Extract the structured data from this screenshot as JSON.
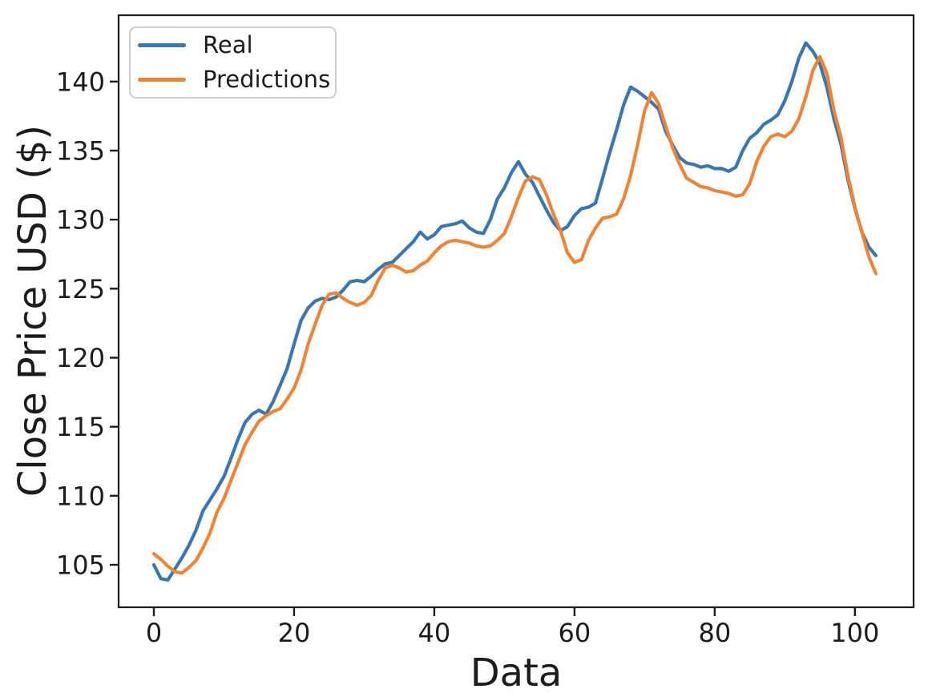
{
  "chart_data": {
    "type": "line",
    "title": "",
    "xlabel": "Data",
    "ylabel": "Close Price USD ($)",
    "x_ticks": [
      0,
      20,
      40,
      60,
      80,
      100
    ],
    "y_ticks": [
      105,
      110,
      115,
      120,
      125,
      130,
      135,
      140
    ],
    "xlim": [
      -5.15,
      108.15
    ],
    "ylim": [
      101.9,
      144.8
    ],
    "grid": false,
    "legend_position": "upper left",
    "x_start": 0,
    "x_step": 1,
    "n_points": 104,
    "series": [
      {
        "name": "Real",
        "color": "#3a76b0",
        "values": [
          105.0,
          104.0,
          103.9,
          104.7,
          105.5,
          106.4,
          107.5,
          108.9,
          109.7,
          110.5,
          111.4,
          112.7,
          114.1,
          115.3,
          115.9,
          116.2,
          115.9,
          116.8,
          118.0,
          119.2,
          121.0,
          122.7,
          123.6,
          124.1,
          124.3,
          124.2,
          124.4,
          124.9,
          125.5,
          125.6,
          125.5,
          125.9,
          126.4,
          126.8,
          126.9,
          127.4,
          127.9,
          128.4,
          129.1,
          128.6,
          128.9,
          129.5,
          129.6,
          129.7,
          129.9,
          129.4,
          129.1,
          129.0,
          130.0,
          131.5,
          132.3,
          133.4,
          134.2,
          133.3,
          132.7,
          131.7,
          130.7,
          129.8,
          129.2,
          129.5,
          130.3,
          130.8,
          130.9,
          131.2,
          133.0,
          134.8,
          136.5,
          138.3,
          139.6,
          139.3,
          138.9,
          138.5,
          138.0,
          136.4,
          135.4,
          134.5,
          134.1,
          134.0,
          133.8,
          133.9,
          133.7,
          133.7,
          133.5,
          133.8,
          135.0,
          135.9,
          136.3,
          136.9,
          137.2,
          137.6,
          138.6,
          140.0,
          141.7,
          142.8,
          142.2,
          141.3,
          139.6,
          137.3,
          135.5,
          132.9,
          130.8,
          129.1,
          128.0,
          127.4
        ]
      },
      {
        "name": "Predictions",
        "color": "#ee8435",
        "values": [
          105.8,
          105.4,
          104.9,
          104.5,
          104.4,
          104.8,
          105.3,
          106.2,
          107.3,
          108.8,
          109.8,
          111.1,
          112.4,
          113.7,
          114.6,
          115.4,
          115.8,
          116.1,
          116.3,
          117.0,
          117.8,
          119.1,
          121.0,
          122.4,
          123.8,
          124.6,
          124.7,
          124.3,
          124.0,
          123.8,
          124.0,
          124.5,
          125.6,
          126.5,
          126.7,
          126.5,
          126.2,
          126.3,
          126.7,
          127.0,
          127.6,
          128.1,
          128.4,
          128.5,
          128.4,
          128.3,
          128.1,
          128.0,
          128.1,
          128.5,
          129.0,
          130.2,
          131.6,
          132.8,
          133.1,
          132.9,
          131.8,
          130.4,
          129.2,
          127.6,
          126.9,
          127.1,
          128.5,
          129.4,
          130.1,
          130.2,
          130.4,
          131.5,
          133.2,
          135.4,
          137.9,
          139.2,
          138.4,
          136.8,
          135.2,
          134.0,
          133.0,
          132.7,
          132.4,
          132.3,
          132.1,
          132.0,
          131.9,
          131.7,
          131.8,
          132.6,
          134.2,
          135.3,
          136.0,
          136.2,
          136.0,
          136.4,
          137.3,
          138.9,
          140.8,
          141.8,
          140.6,
          137.9,
          136.0,
          133.2,
          130.9,
          129.1,
          127.3,
          126.1
        ]
      }
    ],
    "spine_color": "#1c1c1c",
    "tick_color": "#1c1c1c"
  },
  "legend": {
    "items": [
      {
        "label": "Real"
      },
      {
        "label": "Predictions"
      }
    ]
  }
}
